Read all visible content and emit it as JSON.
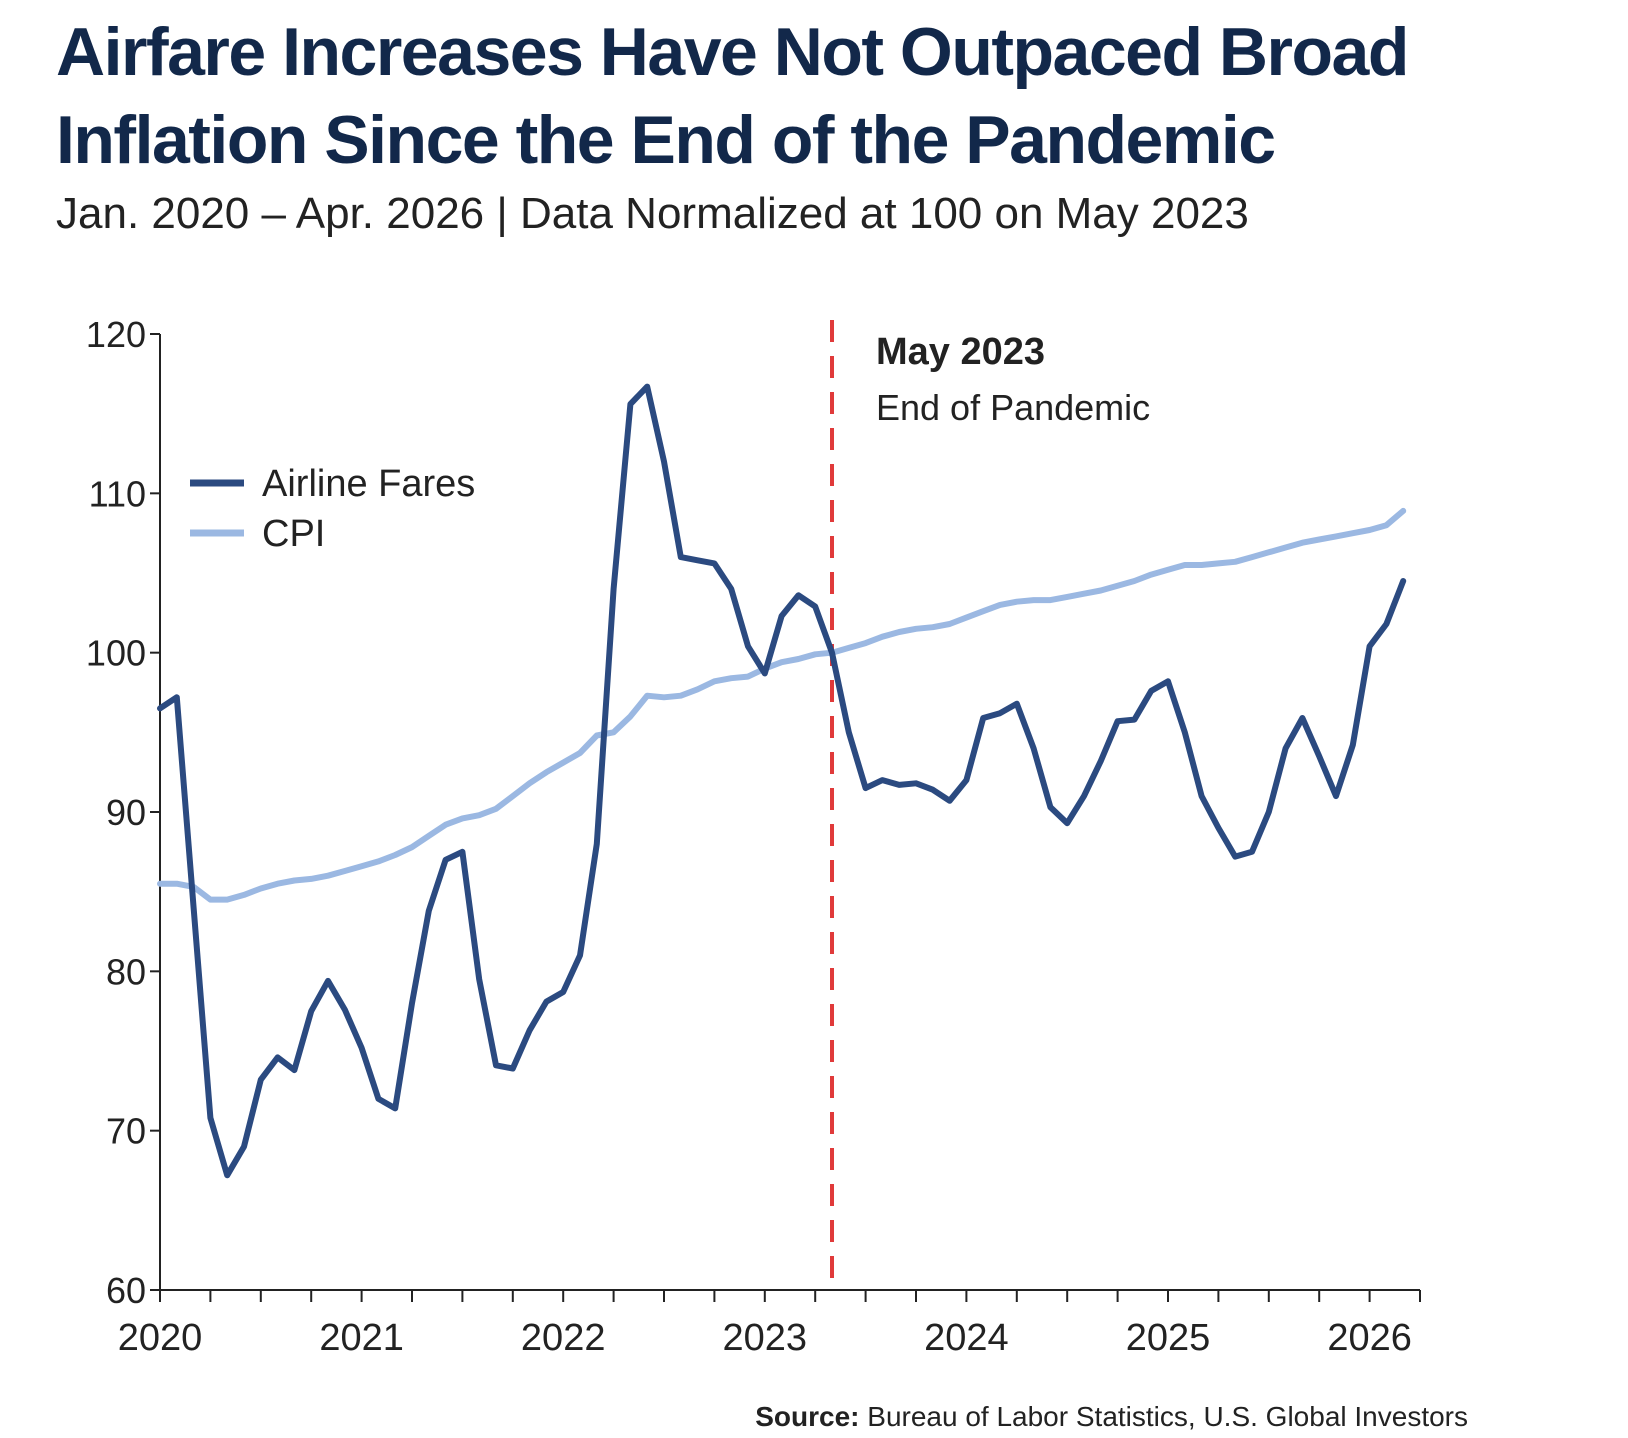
{
  "title": "Airfare Increases Have Not Outpaced Broad Inflation Since the End of the Pandemic",
  "subtitle": "Jan. 2020 – Apr. 2026 | Data Normalized at 100 on May 2023",
  "source": {
    "label": "Source:",
    "text": "Bureau of Labor Statistics, U.S. Global Investors"
  },
  "colors": {
    "airline": "#2b4a80",
    "cpi": "#9bb8e2",
    "marker": "#e03a3a",
    "axis": "#222222"
  },
  "chart_data": {
    "type": "line",
    "x_unit": "month",
    "x_start": "2020-01",
    "x_end": "2026-04",
    "ylim": [
      60,
      120
    ],
    "yticks": [
      60,
      70,
      80,
      90,
      100,
      110,
      120
    ],
    "xticks": [
      {
        "label": "2020",
        "date": "2020-01"
      },
      {
        "label": "2021",
        "date": "2021-01"
      },
      {
        "label": "2022",
        "date": "2022-01"
      },
      {
        "label": "2023",
        "date": "2023-01"
      },
      {
        "label": "2024",
        "date": "2024-01"
      },
      {
        "label": "2025",
        "date": "2025-01"
      },
      {
        "label": "2026",
        "date": "2026-01"
      }
    ],
    "legend": {
      "placement": "top-left"
    },
    "grid": false,
    "annotation": {
      "date": "2023-05",
      "title": "May 2023",
      "text": "End of Pandemic"
    },
    "series": [
      {
        "name": "Airline Fares",
        "color": "#2b4a80",
        "points": [
          [
            "2020-01",
            96.5
          ],
          [
            "2020-02",
            97.2
          ],
          [
            "2020-03",
            84.0
          ],
          [
            "2020-04",
            70.8
          ],
          [
            "2020-05",
            67.2
          ],
          [
            "2020-06",
            69.0
          ],
          [
            "2020-07",
            73.2
          ],
          [
            "2020-08",
            74.6
          ],
          [
            "2020-09",
            73.8
          ],
          [
            "2020-10",
            77.5
          ],
          [
            "2020-11",
            79.4
          ],
          [
            "2020-12",
            77.6
          ],
          [
            "2021-01",
            75.2
          ],
          [
            "2021-02",
            72.0
          ],
          [
            "2021-03",
            71.4
          ],
          [
            "2021-04",
            78.0
          ],
          [
            "2021-05",
            83.8
          ],
          [
            "2021-06",
            87.0
          ],
          [
            "2021-07",
            87.5
          ],
          [
            "2021-08",
            79.5
          ],
          [
            "2021-09",
            74.1
          ],
          [
            "2021-10",
            73.9
          ],
          [
            "2021-11",
            76.3
          ],
          [
            "2021-12",
            78.1
          ],
          [
            "2022-01",
            78.7
          ],
          [
            "2022-02",
            81.0
          ],
          [
            "2022-03",
            88.0
          ],
          [
            "2022-04",
            104.0
          ],
          [
            "2022-05",
            115.6
          ],
          [
            "2022-06",
            116.7
          ],
          [
            "2022-07",
            112.0
          ],
          [
            "2022-08",
            106.0
          ],
          [
            "2022-09",
            105.8
          ],
          [
            "2022-10",
            105.6
          ],
          [
            "2022-11",
            104.0
          ],
          [
            "2022-12",
            100.4
          ],
          [
            "2023-01",
            98.7
          ],
          [
            "2023-02",
            102.3
          ],
          [
            "2023-03",
            103.6
          ],
          [
            "2023-04",
            102.9
          ],
          [
            "2023-05",
            100.0
          ],
          [
            "2023-06",
            95.0
          ],
          [
            "2023-07",
            91.5
          ],
          [
            "2023-08",
            92.0
          ],
          [
            "2023-09",
            91.7
          ],
          [
            "2023-10",
            91.8
          ],
          [
            "2023-11",
            91.4
          ],
          [
            "2023-12",
            90.7
          ],
          [
            "2024-01",
            92.0
          ],
          [
            "2024-02",
            95.9
          ],
          [
            "2024-03",
            96.2
          ],
          [
            "2024-04",
            96.8
          ],
          [
            "2024-05",
            94.0
          ],
          [
            "2024-06",
            90.3
          ],
          [
            "2024-07",
            89.3
          ],
          [
            "2024-08",
            91.0
          ],
          [
            "2024-09",
            93.2
          ],
          [
            "2024-10",
            95.7
          ],
          [
            "2024-11",
            95.8
          ],
          [
            "2024-12",
            97.6
          ],
          [
            "2025-01",
            98.2
          ],
          [
            "2025-02",
            95.0
          ],
          [
            "2025-03",
            91.0
          ],
          [
            "2025-04",
            89.0
          ],
          [
            "2025-05",
            87.2
          ],
          [
            "2025-06",
            87.5
          ],
          [
            "2025-07",
            90.0
          ],
          [
            "2025-08",
            94.0
          ],
          [
            "2025-09",
            95.9
          ],
          [
            "2025-10",
            93.5
          ],
          [
            "2025-11",
            91.0
          ],
          [
            "2025-12",
            94.2
          ],
          [
            "2026-01",
            100.4
          ],
          [
            "2026-02",
            101.8
          ],
          [
            "2026-03",
            104.5
          ]
        ]
      },
      {
        "name": "CPI",
        "color": "#9bb8e2",
        "points": [
          [
            "2020-01",
            85.5
          ],
          [
            "2020-02",
            85.5
          ],
          [
            "2020-03",
            85.3
          ],
          [
            "2020-04",
            84.5
          ],
          [
            "2020-05",
            84.5
          ],
          [
            "2020-06",
            84.8
          ],
          [
            "2020-07",
            85.2
          ],
          [
            "2020-08",
            85.5
          ],
          [
            "2020-09",
            85.7
          ],
          [
            "2020-10",
            85.8
          ],
          [
            "2020-11",
            86.0
          ],
          [
            "2020-12",
            86.3
          ],
          [
            "2021-01",
            86.6
          ],
          [
            "2021-02",
            86.9
          ],
          [
            "2021-03",
            87.3
          ],
          [
            "2021-04",
            87.8
          ],
          [
            "2021-05",
            88.5
          ],
          [
            "2021-06",
            89.2
          ],
          [
            "2021-07",
            89.6
          ],
          [
            "2021-08",
            89.8
          ],
          [
            "2021-09",
            90.2
          ],
          [
            "2021-10",
            91.0
          ],
          [
            "2021-11",
            91.8
          ],
          [
            "2021-12",
            92.5
          ],
          [
            "2022-01",
            93.1
          ],
          [
            "2022-02",
            93.7
          ],
          [
            "2022-03",
            94.8
          ],
          [
            "2022-04",
            95.0
          ],
          [
            "2022-05",
            96.0
          ],
          [
            "2022-06",
            97.3
          ],
          [
            "2022-07",
            97.2
          ],
          [
            "2022-08",
            97.3
          ],
          [
            "2022-09",
            97.7
          ],
          [
            "2022-10",
            98.2
          ],
          [
            "2022-11",
            98.4
          ],
          [
            "2022-12",
            98.5
          ],
          [
            "2023-01",
            99.0
          ],
          [
            "2023-02",
            99.4
          ],
          [
            "2023-03",
            99.6
          ],
          [
            "2023-04",
            99.9
          ],
          [
            "2023-05",
            100.0
          ],
          [
            "2023-06",
            100.3
          ],
          [
            "2023-07",
            100.6
          ],
          [
            "2023-08",
            101.0
          ],
          [
            "2023-09",
            101.3
          ],
          [
            "2023-10",
            101.5
          ],
          [
            "2023-11",
            101.6
          ],
          [
            "2023-12",
            101.8
          ],
          [
            "2024-01",
            102.2
          ],
          [
            "2024-02",
            102.6
          ],
          [
            "2024-03",
            103.0
          ],
          [
            "2024-04",
            103.2
          ],
          [
            "2024-05",
            103.3
          ],
          [
            "2024-06",
            103.3
          ],
          [
            "2024-07",
            103.5
          ],
          [
            "2024-08",
            103.7
          ],
          [
            "2024-09",
            103.9
          ],
          [
            "2024-10",
            104.2
          ],
          [
            "2024-11",
            104.5
          ],
          [
            "2024-12",
            104.9
          ],
          [
            "2025-01",
            105.2
          ],
          [
            "2025-02",
            105.5
          ],
          [
            "2025-03",
            105.5
          ],
          [
            "2025-04",
            105.6
          ],
          [
            "2025-05",
            105.7
          ],
          [
            "2025-06",
            106.0
          ],
          [
            "2025-07",
            106.3
          ],
          [
            "2025-08",
            106.6
          ],
          [
            "2025-09",
            106.9
          ],
          [
            "2025-10",
            107.1
          ],
          [
            "2025-11",
            107.3
          ],
          [
            "2025-12",
            107.5
          ],
          [
            "2026-01",
            107.7
          ],
          [
            "2026-02",
            108.0
          ],
          [
            "2026-03",
            108.9
          ]
        ]
      }
    ]
  }
}
